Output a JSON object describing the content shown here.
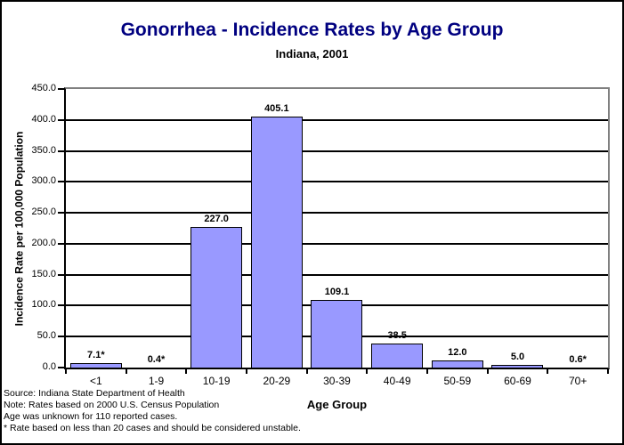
{
  "chart_data": {
    "type": "bar",
    "title": "Gonorrhea - Incidence Rates by Age Group",
    "subtitle": "Indiana, 2001",
    "xlabel": "Age Group",
    "ylabel": "Incidence Rate per 100,000 Population",
    "categories": [
      "<1",
      "1-9",
      "10-19",
      "20-29",
      "30-39",
      "40-49",
      "50-59",
      "60-69",
      "70+"
    ],
    "values": [
      7.1,
      0.4,
      227.0,
      405.1,
      109.1,
      38.5,
      12.0,
      5.0,
      0.6
    ],
    "value_labels": [
      "7.1*",
      "0.4*",
      "227.0",
      "405.1",
      "109.1",
      "38.5",
      "12.0",
      "5.0",
      "0.6*"
    ],
    "ylim": [
      0,
      450
    ],
    "ytick_step": 50,
    "ytick_labels": [
      "0.0",
      "50.0",
      "100.0",
      "150.0",
      "200.0",
      "250.0",
      "300.0",
      "350.0",
      "400.0",
      "450.0"
    ],
    "grid": true,
    "legend": "none",
    "colors": {
      "title": "#000080",
      "bar_fill": "#9999FF",
      "bar_border": "#000000",
      "grid": "#000000",
      "plot_border": "#808080",
      "axis": "#000000"
    }
  },
  "footnotes": [
    "Source: Indiana State Department of Health",
    "Note: Rates based on 2000 U.S. Census Population",
    "Age was unknown for 110 reported cases.",
    "* Rate based on less than 20 cases and should be considered unstable."
  ]
}
